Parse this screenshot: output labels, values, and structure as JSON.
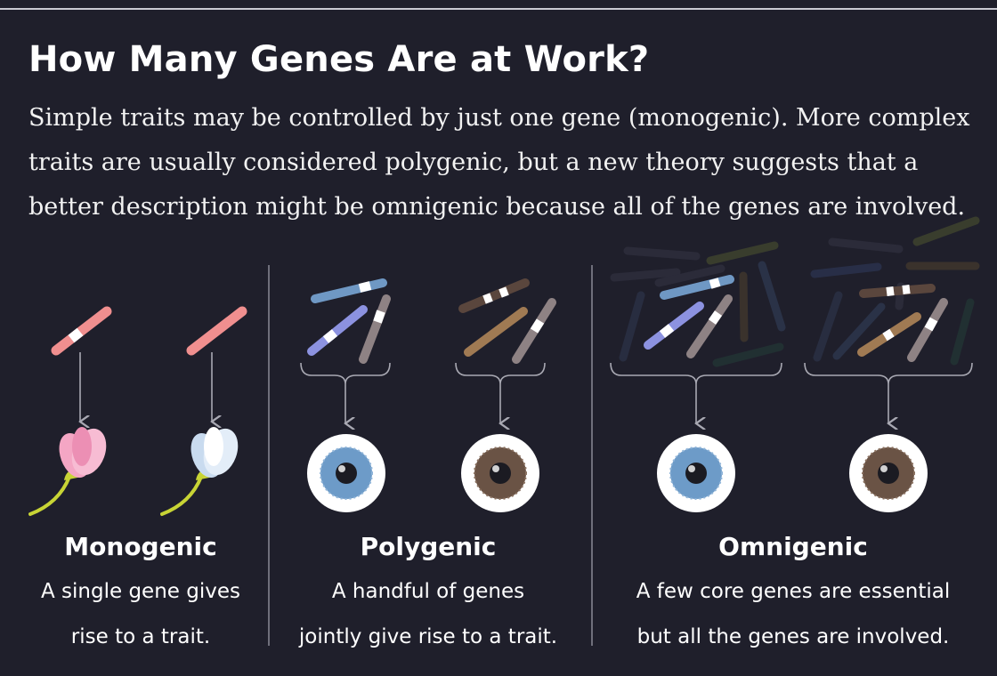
{
  "title": "How Many Genes Are at Work?",
  "intro": "Simple traits may be controlled by just one gene (monogenic). More complex traits are usually considered polygenic, but a new theory suggests that a better description might be omnigenic because all of the genes are involved.",
  "panels": [
    {
      "heading": "Monogenic",
      "desc_line1": "A single gene gives",
      "desc_line2": "rise to a trait.",
      "examples": [
        "pink-flower",
        "white-flower"
      ]
    },
    {
      "heading": "Polygenic",
      "desc_line1": "A handful of genes",
      "desc_line2": "jointly give rise to a trait.",
      "examples": [
        "blue-eye",
        "brown-eye"
      ]
    },
    {
      "heading": "Omnigenic",
      "desc_line1": "A few core genes are essential",
      "desc_line2": "but all the genes are involved.",
      "examples": [
        "blue-eye",
        "brown-eye"
      ]
    }
  ],
  "colors": {
    "background": "#1f1f2b",
    "gene_pink": "#f08f8f",
    "gene_blue_steel": "#6f98c4",
    "gene_periwinkle": "#8c92e0",
    "gene_taupe": "#8e8284",
    "gene_brown": "#5a463d",
    "gene_tan": "#a07a53",
    "flower_pink": "#f4a6c4",
    "flower_white": "#e3edf8",
    "stem": "#c8d435",
    "iris_blue": "#6d9bc8",
    "iris_brown": "#6a5345"
  }
}
